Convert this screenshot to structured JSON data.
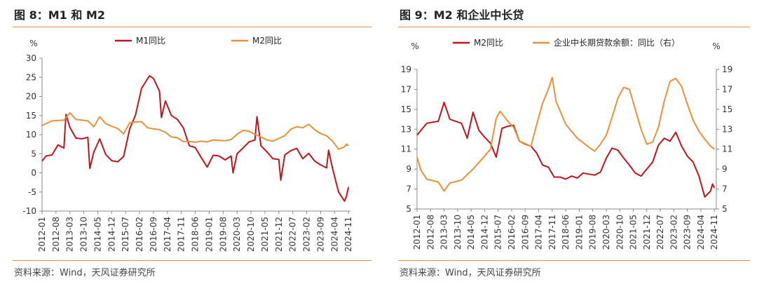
{
  "panels": [
    {
      "figure_title": "图 8：M1 和 M2",
      "source": "资料来源：Wind，天风证券研究所"
    },
    {
      "figure_title": "图 9：M2 和企业中长贷",
      "source": "资料来源：Wind，天风证券研究所"
    }
  ],
  "colors": {
    "rule": "#e8913a",
    "m1": "#c0141c",
    "m2": "#e8913a",
    "axis": "#888888"
  },
  "chart_data": [
    {
      "type": "line",
      "title": "",
      "unit_left": "%",
      "ylim": [
        -10,
        30
      ],
      "yticks": [
        -10,
        -5,
        0,
        5,
        10,
        15,
        20,
        25,
        30
      ],
      "xlim": [
        "2012-01",
        "2024-12"
      ],
      "xticks": [
        "2012-01",
        "2012-08",
        "2013-03",
        "2013-10",
        "2014-05",
        "2014-12",
        "2015-07",
        "2016-02",
        "2016-09",
        "2017-04",
        "2017-11",
        "2018-06",
        "2019-01",
        "2019-08",
        "2020-03",
        "2020-10",
        "2021-05",
        "2021-12",
        "2022-07",
        "2023-02",
        "2023-09",
        "2024-04",
        "2024-11"
      ],
      "legend": "top-center",
      "grid": false,
      "series": [
        {
          "name": "M1同比",
          "color": "#c0141c",
          "points": [
            [
              "2012-01",
              3.1
            ],
            [
              "2012-03",
              4.4
            ],
            [
              "2012-06",
              4.7
            ],
            [
              "2012-09",
              7.3
            ],
            [
              "2012-12",
              6.5
            ],
            [
              "2013-01",
              15.3
            ],
            [
              "2013-03",
              11.9
            ],
            [
              "2013-06",
              9.1
            ],
            [
              "2013-09",
              8.9
            ],
            [
              "2013-12",
              9.3
            ],
            [
              "2014-01",
              1.2
            ],
            [
              "2014-03",
              5.4
            ],
            [
              "2014-06",
              8.9
            ],
            [
              "2014-09",
              4.8
            ],
            [
              "2014-12",
              3.2
            ],
            [
              "2015-03",
              2.9
            ],
            [
              "2015-06",
              4.3
            ],
            [
              "2015-09",
              11.4
            ],
            [
              "2015-12",
              15.2
            ],
            [
              "2016-03",
              22.1
            ],
            [
              "2016-06",
              24.6
            ],
            [
              "2016-07",
              25.4
            ],
            [
              "2016-09",
              24.7
            ],
            [
              "2016-12",
              21.4
            ],
            [
              "2017-01",
              14.5
            ],
            [
              "2017-03",
              18.8
            ],
            [
              "2017-06",
              15.0
            ],
            [
              "2017-09",
              14.0
            ],
            [
              "2017-12",
              11.8
            ],
            [
              "2018-03",
              7.1
            ],
            [
              "2018-06",
              6.6
            ],
            [
              "2018-09",
              4.0
            ],
            [
              "2018-12",
              1.5
            ],
            [
              "2019-03",
              4.6
            ],
            [
              "2019-06",
              4.4
            ],
            [
              "2019-09",
              3.4
            ],
            [
              "2019-12",
              4.4
            ],
            [
              "2020-01",
              0.0
            ],
            [
              "2020-03",
              5.0
            ],
            [
              "2020-06",
              6.5
            ],
            [
              "2020-09",
              8.1
            ],
            [
              "2020-12",
              8.6
            ],
            [
              "2021-01",
              14.7
            ],
            [
              "2021-03",
              7.1
            ],
            [
              "2021-06",
              5.5
            ],
            [
              "2021-09",
              3.7
            ],
            [
              "2021-12",
              3.5
            ],
            [
              "2022-01",
              -1.9
            ],
            [
              "2022-03",
              4.7
            ],
            [
              "2022-06",
              5.8
            ],
            [
              "2022-09",
              6.4
            ],
            [
              "2022-12",
              3.7
            ],
            [
              "2023-03",
              5.1
            ],
            [
              "2023-06",
              3.1
            ],
            [
              "2023-09",
              2.1
            ],
            [
              "2023-12",
              1.3
            ],
            [
              "2024-01",
              5.9
            ],
            [
              "2024-03",
              1.1
            ],
            [
              "2024-06",
              -5.0
            ],
            [
              "2024-09",
              -7.4
            ],
            [
              "2024-10",
              -6.1
            ],
            [
              "2024-11",
              -3.7
            ]
          ]
        },
        {
          "name": "M2同比",
          "color": "#e8913a",
          "points": [
            [
              "2012-01",
              12.4
            ],
            [
              "2012-06",
              13.6
            ],
            [
              "2012-12",
              13.8
            ],
            [
              "2013-03",
              15.7
            ],
            [
              "2013-06",
              14.0
            ],
            [
              "2013-12",
              13.6
            ],
            [
              "2014-03",
              12.1
            ],
            [
              "2014-06",
              14.7
            ],
            [
              "2014-09",
              12.9
            ],
            [
              "2014-12",
              12.2
            ],
            [
              "2015-03",
              11.6
            ],
            [
              "2015-06",
              10.2
            ],
            [
              "2015-09",
              13.1
            ],
            [
              "2015-12",
              13.3
            ],
            [
              "2016-03",
              13.4
            ],
            [
              "2016-06",
              11.8
            ],
            [
              "2016-09",
              11.5
            ],
            [
              "2016-12",
              11.3
            ],
            [
              "2017-03",
              10.6
            ],
            [
              "2017-06",
              9.4
            ],
            [
              "2017-09",
              9.2
            ],
            [
              "2017-12",
              8.2
            ],
            [
              "2018-03",
              8.2
            ],
            [
              "2018-06",
              8.0
            ],
            [
              "2018-09",
              8.3
            ],
            [
              "2018-12",
              8.1
            ],
            [
              "2019-03",
              8.6
            ],
            [
              "2019-06",
              8.5
            ],
            [
              "2019-09",
              8.4
            ],
            [
              "2019-12",
              8.7
            ],
            [
              "2020-03",
              10.1
            ],
            [
              "2020-06",
              11.1
            ],
            [
              "2020-09",
              10.9
            ],
            [
              "2020-12",
              10.1
            ],
            [
              "2021-03",
              9.4
            ],
            [
              "2021-06",
              8.6
            ],
            [
              "2021-09",
              8.3
            ],
            [
              "2021-12",
              9.0
            ],
            [
              "2022-03",
              9.7
            ],
            [
              "2022-06",
              11.4
            ],
            [
              "2022-09",
              12.1
            ],
            [
              "2022-12",
              11.8
            ],
            [
              "2023-03",
              12.7
            ],
            [
              "2023-06",
              11.3
            ],
            [
              "2023-09",
              10.3
            ],
            [
              "2023-12",
              9.7
            ],
            [
              "2024-03",
              8.3
            ],
            [
              "2024-06",
              6.2
            ],
            [
              "2024-09",
              6.8
            ],
            [
              "2024-10",
              7.5
            ],
            [
              "2024-11",
              7.1
            ]
          ]
        }
      ]
    },
    {
      "type": "line",
      "title": "",
      "unit_left": "%",
      "unit_right": "%",
      "ylim": [
        5,
        19
      ],
      "yticks": [
        5,
        7,
        9,
        11,
        13,
        15,
        17,
        19
      ],
      "y2lim": [
        5,
        19
      ],
      "y2ticks": [
        5,
        7,
        9,
        11,
        13,
        15,
        17,
        19
      ],
      "xlim": [
        "2012-01",
        "2024-12"
      ],
      "xticks": [
        "2012-01",
        "2012-08",
        "2013-03",
        "2013-10",
        "2014-05",
        "2014-12",
        "2015-07",
        "2016-02",
        "2016-09",
        "2017-04",
        "2017-11",
        "2018-06",
        "2019-01",
        "2019-08",
        "2020-03",
        "2020-10",
        "2021-05",
        "2021-12",
        "2022-07",
        "2023-02",
        "2023-09",
        "2024-04",
        "2024-11"
      ],
      "legend": "top-center",
      "grid": false,
      "series": [
        {
          "name": "M2同比",
          "color": "#c0141c",
          "axis": "left",
          "points": [
            [
              "2012-01",
              12.4
            ],
            [
              "2012-06",
              13.6
            ],
            [
              "2012-12",
              13.8
            ],
            [
              "2013-03",
              15.7
            ],
            [
              "2013-06",
              14.0
            ],
            [
              "2013-12",
              13.6
            ],
            [
              "2014-03",
              12.1
            ],
            [
              "2014-06",
              14.7
            ],
            [
              "2014-09",
              12.9
            ],
            [
              "2014-12",
              12.2
            ],
            [
              "2015-03",
              11.6
            ],
            [
              "2015-06",
              10.2
            ],
            [
              "2015-09",
              13.1
            ],
            [
              "2015-12",
              13.3
            ],
            [
              "2016-03",
              13.4
            ],
            [
              "2016-06",
              11.8
            ],
            [
              "2016-09",
              11.5
            ],
            [
              "2016-12",
              11.3
            ],
            [
              "2017-03",
              10.6
            ],
            [
              "2017-06",
              9.4
            ],
            [
              "2017-09",
              9.2
            ],
            [
              "2017-12",
              8.2
            ],
            [
              "2018-03",
              8.2
            ],
            [
              "2018-06",
              8.0
            ],
            [
              "2018-09",
              8.3
            ],
            [
              "2018-12",
              8.1
            ],
            [
              "2019-03",
              8.6
            ],
            [
              "2019-06",
              8.5
            ],
            [
              "2019-09",
              8.4
            ],
            [
              "2019-12",
              8.7
            ],
            [
              "2020-03",
              10.1
            ],
            [
              "2020-06",
              11.1
            ],
            [
              "2020-09",
              10.9
            ],
            [
              "2020-12",
              10.1
            ],
            [
              "2021-03",
              9.4
            ],
            [
              "2021-06",
              8.6
            ],
            [
              "2021-09",
              8.3
            ],
            [
              "2021-12",
              9.0
            ],
            [
              "2022-03",
              9.7
            ],
            [
              "2022-06",
              11.4
            ],
            [
              "2022-09",
              12.1
            ],
            [
              "2022-12",
              11.8
            ],
            [
              "2023-03",
              12.7
            ],
            [
              "2023-06",
              11.3
            ],
            [
              "2023-09",
              10.3
            ],
            [
              "2023-12",
              9.7
            ],
            [
              "2024-03",
              8.3
            ],
            [
              "2024-06",
              6.2
            ],
            [
              "2024-09",
              6.8
            ],
            [
              "2024-10",
              7.5
            ],
            [
              "2024-11",
              7.1
            ]
          ]
        },
        {
          "name": "企业中长期贷款余额：同比（右）",
          "color": "#e8913a",
          "axis": "right",
          "points": [
            [
              "2012-01",
              10.2
            ],
            [
              "2012-03",
              8.9
            ],
            [
              "2012-06",
              8.0
            ],
            [
              "2012-12",
              7.7
            ],
            [
              "2013-03",
              6.8
            ],
            [
              "2013-06",
              7.6
            ],
            [
              "2013-12",
              7.9
            ],
            [
              "2014-06",
              9.0
            ],
            [
              "2014-12",
              10.3
            ],
            [
              "2015-03",
              11.0
            ],
            [
              "2015-06",
              14.1
            ],
            [
              "2015-08",
              14.8
            ],
            [
              "2015-12",
              13.8
            ],
            [
              "2016-03",
              13.2
            ],
            [
              "2016-06",
              11.8
            ],
            [
              "2016-12",
              11.3
            ],
            [
              "2017-03",
              13.5
            ],
            [
              "2017-06",
              15.6
            ],
            [
              "2017-09",
              17.0
            ],
            [
              "2017-11",
              18.2
            ],
            [
              "2018-01",
              15.8
            ],
            [
              "2018-06",
              13.5
            ],
            [
              "2018-12",
              12.1
            ],
            [
              "2019-06",
              11.2
            ],
            [
              "2019-09",
              10.8
            ],
            [
              "2019-12",
              11.5
            ],
            [
              "2020-03",
              12.4
            ],
            [
              "2020-06",
              14.2
            ],
            [
              "2020-09",
              16.1
            ],
            [
              "2020-12",
              17.2
            ],
            [
              "2021-03",
              17.0
            ],
            [
              "2021-06",
              15.0
            ],
            [
              "2021-09",
              13.0
            ],
            [
              "2021-12",
              11.5
            ],
            [
              "2022-03",
              11.7
            ],
            [
              "2022-06",
              13.2
            ],
            [
              "2022-09",
              15.8
            ],
            [
              "2022-12",
              17.8
            ],
            [
              "2023-03",
              18.1
            ],
            [
              "2023-06",
              17.3
            ],
            [
              "2023-09",
              15.5
            ],
            [
              "2023-12",
              13.9
            ],
            [
              "2024-03",
              12.8
            ],
            [
              "2024-06",
              12.0
            ],
            [
              "2024-09",
              11.3
            ],
            [
              "2024-11",
              11.0
            ]
          ]
        }
      ]
    }
  ]
}
